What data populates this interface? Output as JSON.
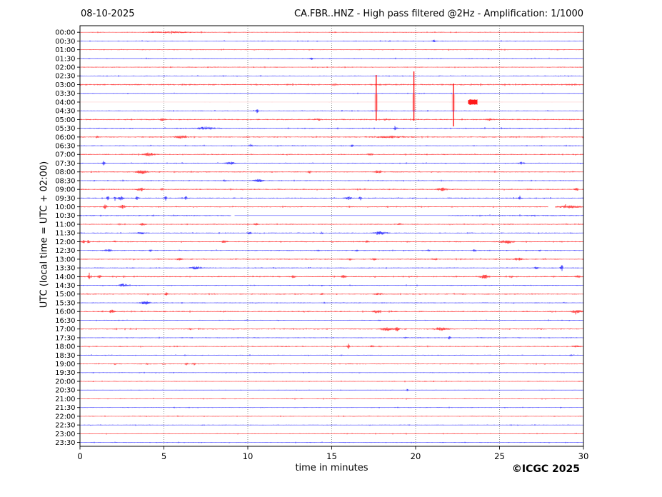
{
  "header": {
    "date": "08-10-2025",
    "title": "CA.FBR..HNZ - High pass filtered @2Hz - Amplification: 1/1000"
  },
  "axes": {
    "x_label": "time in minutes",
    "y_label": "UTC (local time = UTC + 02:00)",
    "x_ticks": [
      0,
      5,
      10,
      15,
      20,
      25,
      30
    ],
    "x_range": [
      0,
      30
    ],
    "grid_minutes": [
      5,
      10,
      15,
      20,
      25
    ]
  },
  "footer": {
    "copyright": "©ICGC 2025"
  },
  "colors": {
    "red_trace": "#ff0000",
    "blue_trace": "#0000ff",
    "pale_trace": "#ffb3b3",
    "spike_halo": "rgba(255,70,70,0.28)",
    "grid": "#808080",
    "axis": "#000000"
  },
  "chart_data": {
    "type": "line",
    "subtype": "helicorder",
    "station": "CA.FBR..HNZ",
    "filter": "High pass filtered @2Hz",
    "amplification": "1/1000",
    "date": "08-10-2025",
    "minutes_per_line": 30,
    "rows": [
      {
        "t": "00:00",
        "c": "r",
        "n": 0.55,
        "e": [
          [
            5.5,
            0.7,
            1.2
          ]
        ]
      },
      {
        "t": "00:30",
        "c": "b",
        "n": 0.55,
        "e": [
          [
            21.1,
            1.2,
            0.08
          ]
        ]
      },
      {
        "t": "01:00",
        "c": "r",
        "n": 0.6,
        "e": []
      },
      {
        "t": "01:30",
        "c": "b",
        "n": 0.55,
        "e": [
          [
            13.8,
            1.3,
            0.08
          ]
        ]
      },
      {
        "t": "02:00",
        "c": "r",
        "n": 0.6,
        "e": []
      },
      {
        "t": "02:30",
        "c": "b",
        "n": 0.55,
        "e": []
      },
      {
        "t": "03:00",
        "c": "r",
        "n": 0.9,
        "e": []
      },
      {
        "t": "03:30",
        "c": "b",
        "n": 0.5,
        "e": []
      },
      {
        "t": "04:00",
        "c": "r",
        "n": 0.25,
        "pale": true,
        "spikes": [
          [
            17.65,
            38,
            26
          ],
          [
            19.9,
            43,
            26
          ],
          [
            22.25,
            26,
            34
          ]
        ],
        "e": [
          [
            23.4,
            4,
            0.12
          ]
        ]
      },
      {
        "t": "04:30",
        "c": "b",
        "n": 0.55,
        "e": [
          [
            10.55,
            2.2,
            0.07
          ],
          [
            15.6,
            1.0,
            0.06
          ]
        ]
      },
      {
        "t": "05:00",
        "c": "r",
        "n": 0.8,
        "e": [
          [
            4.9,
            1.2,
            0.15
          ],
          [
            14.2,
            0.9,
            0.12
          ],
          [
            18.2,
            0.9,
            0.12
          ],
          [
            24.4,
            1.0,
            0.12
          ]
        ]
      },
      {
        "t": "05:30",
        "c": "b",
        "n": 0.7,
        "e": [
          [
            7.5,
            1.6,
            0.45
          ],
          [
            18.8,
            1.3,
            0.1
          ]
        ]
      },
      {
        "t": "06:00",
        "c": "r",
        "n": 0.75,
        "e": [
          [
            1.0,
            0.9,
            0.1
          ],
          [
            6.0,
            1.3,
            0.35
          ],
          [
            18.5,
            0.7,
            1.0
          ]
        ]
      },
      {
        "t": "06:30",
        "c": "b",
        "n": 0.6,
        "e": [
          [
            10.2,
            1.6,
            0.08
          ],
          [
            16.2,
            1.3,
            0.08
          ]
        ]
      },
      {
        "t": "07:00",
        "c": "r",
        "n": 0.7,
        "e": [
          [
            4.1,
            1.9,
            0.3
          ],
          [
            17.3,
            0.9,
            0.15
          ]
        ]
      },
      {
        "t": "07:30",
        "c": "b",
        "n": 0.6,
        "e": [
          [
            1.4,
            2.0,
            0.07
          ],
          [
            8.95,
            1.6,
            0.25
          ],
          [
            26.3,
            1.3,
            0.15
          ]
        ]
      },
      {
        "t": "08:00",
        "c": "r",
        "n": 0.7,
        "e": [
          [
            3.7,
            1.9,
            0.3
          ],
          [
            13.7,
            1.6,
            0.08
          ],
          [
            17.7,
            1.3,
            0.2
          ]
        ]
      },
      {
        "t": "08:30",
        "c": "b",
        "n": 0.6,
        "e": [
          [
            8.6,
            0.9,
            0.1
          ],
          [
            10.65,
            1.6,
            0.25
          ]
        ]
      },
      {
        "t": "09:00",
        "c": "r",
        "n": 0.7,
        "e": [
          [
            3.6,
            1.8,
            0.2
          ],
          [
            4.9,
            0.9,
            0.1
          ],
          [
            21.6,
            1.5,
            0.3
          ],
          [
            29.6,
            1.1,
            0.15
          ]
        ]
      },
      {
        "t": "09:30",
        "c": "b",
        "n": 0.7,
        "e": [
          [
            1.65,
            2.8,
            0.06
          ],
          [
            2.1,
            2.8,
            0.06
          ],
          [
            2.45,
            2.2,
            0.15
          ],
          [
            3.4,
            1.8,
            0.08
          ],
          [
            5.1,
            2.3,
            0.07
          ],
          [
            6.3,
            1.8,
            0.07
          ],
          [
            16.0,
            1.8,
            0.15
          ],
          [
            16.7,
            2.3,
            0.07
          ],
          [
            26.2,
            1.1,
            0.1
          ]
        ]
      },
      {
        "t": "10:00",
        "c": "r",
        "n": 0.7,
        "gap": [
          27.9,
          28.3
        ],
        "e": [
          [
            1.5,
            2.3,
            0.1
          ],
          [
            2.55,
            1.8,
            0.2
          ],
          [
            29.2,
            1.3,
            0.6
          ]
        ]
      },
      {
        "t": "10:30",
        "c": "b",
        "n": 0.75,
        "gap": [
          9.0,
          9.2
        ],
        "flat": [
          9.2,
          21.9
        ],
        "e": []
      },
      {
        "t": "11:00",
        "c": "r",
        "n": 0.65,
        "e": [
          [
            3.75,
            1.4,
            0.15
          ],
          [
            10.5,
            1.1,
            0.1
          ],
          [
            19.0,
            0.8,
            0.15
          ]
        ]
      },
      {
        "t": "11:30",
        "c": "b",
        "n": 0.65,
        "e": [
          [
            3.7,
            1.4,
            0.2
          ],
          [
            10.1,
            1.4,
            0.1
          ],
          [
            14.4,
            1.1,
            0.1
          ],
          [
            17.9,
            1.7,
            0.35
          ]
        ]
      },
      {
        "t": "12:00",
        "c": "r",
        "n": 0.7,
        "e": [
          [
            0.2,
            1.9,
            0.08
          ],
          [
            0.5,
            1.9,
            0.08
          ],
          [
            2.1,
            1.1,
            0.08
          ],
          [
            8.6,
            1.4,
            0.15
          ],
          [
            17.1,
            1.1,
            0.1
          ],
          [
            25.4,
            1.9,
            0.35
          ]
        ]
      },
      {
        "t": "12:30",
        "c": "b",
        "n": 0.65,
        "e": [
          [
            1.75,
            1.6,
            0.2
          ],
          [
            4.2,
            1.1,
            0.08
          ],
          [
            14.2,
            1.1,
            0.08
          ],
          [
            16.5,
            1.1,
            0.08
          ],
          [
            20.8,
            1.1,
            0.08
          ],
          [
            23.5,
            1.4,
            0.1
          ],
          [
            27.4,
            1.1,
            0.08
          ]
        ]
      },
      {
        "t": "13:00",
        "c": "r",
        "n": 0.7,
        "e": [
          [
            5.9,
            1.4,
            0.15
          ],
          [
            16.1,
            1.1,
            0.1
          ],
          [
            17.5,
            1.1,
            0.1
          ],
          [
            21.2,
            1.1,
            0.1
          ],
          [
            26.1,
            1.4,
            0.25
          ]
        ]
      },
      {
        "t": "13:30",
        "c": "b",
        "n": 0.65,
        "e": [
          [
            6.9,
            1.6,
            0.3
          ],
          [
            27.2,
            1.4,
            0.12
          ],
          [
            28.7,
            3.5,
            0.07
          ]
        ]
      },
      {
        "t": "14:00",
        "c": "r",
        "n": 0.75,
        "e": [
          [
            0.55,
            1.9,
            0.08
          ],
          [
            1.15,
            1.9,
            0.08
          ],
          [
            12.7,
            1.4,
            0.1
          ],
          [
            15.7,
            1.4,
            0.12
          ],
          [
            24.1,
            1.9,
            0.25
          ],
          [
            25.7,
            1.1,
            0.1
          ],
          [
            29.7,
            1.4,
            0.12
          ]
        ]
      },
      {
        "t": "14:30",
        "c": "b",
        "n": 0.6,
        "e": [
          [
            2.6,
            1.6,
            0.25
          ]
        ]
      },
      {
        "t": "15:00",
        "c": "r",
        "n": 0.7,
        "e": [
          [
            5.15,
            2.6,
            0.07
          ],
          [
            14.4,
            1.1,
            0.1
          ],
          [
            17.8,
            0.9,
            0.2
          ]
        ]
      },
      {
        "t": "15:30",
        "c": "b",
        "n": 0.6,
        "e": [
          [
            3.9,
            1.8,
            0.25
          ]
        ]
      },
      {
        "t": "16:00",
        "c": "r",
        "n": 0.75,
        "e": [
          [
            1.9,
            1.8,
            0.12
          ],
          [
            17.7,
            1.8,
            0.15
          ],
          [
            29.6,
            1.3,
            0.3
          ]
        ]
      },
      {
        "t": "16:30",
        "c": "b",
        "n": 0.55,
        "e": [
          [
            17.8,
            0.7,
            0.1
          ]
        ]
      },
      {
        "t": "17:00",
        "c": "r",
        "n": 0.7,
        "e": [
          [
            6.6,
            0.9,
            0.1
          ],
          [
            18.3,
            1.6,
            0.4
          ],
          [
            18.9,
            2.0,
            0.12
          ],
          [
            21.5,
            1.7,
            0.4
          ],
          [
            27.5,
            0.9,
            0.1
          ]
        ]
      },
      {
        "t": "17:30",
        "c": "b",
        "n": 0.6,
        "e": [
          [
            19.4,
            0.9,
            0.08
          ],
          [
            22.0,
            2.2,
            0.06
          ]
        ]
      },
      {
        "t": "18:00",
        "c": "r",
        "n": 0.65,
        "e": [
          [
            16.0,
            1.8,
            0.07
          ],
          [
            17.4,
            0.9,
            0.1
          ],
          [
            29.6,
            1.1,
            0.2
          ]
        ]
      },
      {
        "t": "18:30",
        "c": "b",
        "n": 0.55,
        "e": [
          [
            29.3,
            1.0,
            0.1
          ]
        ]
      },
      {
        "t": "19:00",
        "c": "r",
        "n": 0.65,
        "e": [
          [
            2.1,
            0.9,
            0.08
          ],
          [
            4.0,
            0.9,
            0.08
          ],
          [
            6.35,
            1.6,
            0.08
          ],
          [
            6.8,
            1.6,
            0.08
          ]
        ]
      },
      {
        "t": "19:30",
        "c": "b",
        "n": 0.5,
        "e": []
      },
      {
        "t": "20:00",
        "c": "r",
        "n": 0.55,
        "e": []
      },
      {
        "t": "20:30",
        "c": "b",
        "n": 0.5,
        "e": [
          [
            19.5,
            1.1,
            0.07
          ]
        ]
      },
      {
        "t": "21:00",
        "c": "r",
        "n": 0.55,
        "e": []
      },
      {
        "t": "21:30",
        "c": "b",
        "n": 0.5,
        "e": []
      },
      {
        "t": "22:00",
        "c": "r",
        "n": 0.55,
        "e": []
      },
      {
        "t": "22:30",
        "c": "b",
        "n": 0.5,
        "e": []
      },
      {
        "t": "23:00",
        "c": "r",
        "n": 0.55,
        "e": []
      },
      {
        "t": "23:30",
        "c": "b",
        "n": 0.5,
        "e": []
      }
    ]
  }
}
